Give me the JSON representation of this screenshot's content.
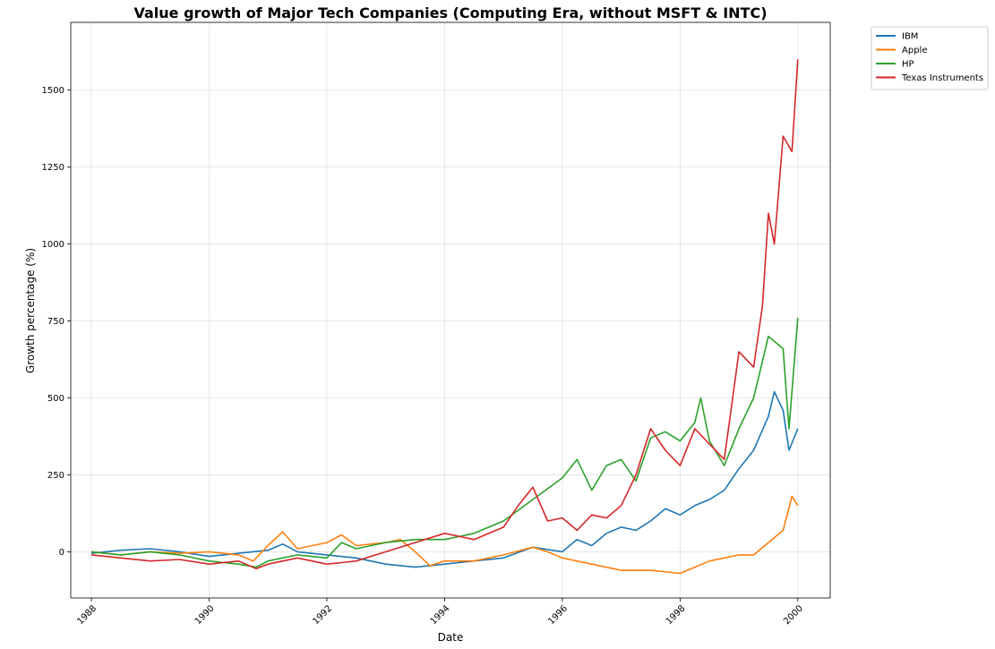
{
  "chart_data": {
    "type": "line",
    "title": "Value growth of Major Tech Companies (Computing Era, without MSFT & INTC)",
    "xlabel": "Date",
    "ylabel": "Growth percentage (%)",
    "xlim": [
      1987.65,
      2000.55
    ],
    "ylim": [
      -150,
      1720
    ],
    "x_ticks": [
      1988,
      1990,
      1992,
      1994,
      1996,
      1998,
      2000
    ],
    "x_tick_labels": [
      "1988",
      "1990",
      "1992",
      "1994",
      "1996",
      "1998",
      "2000"
    ],
    "y_ticks": [
      0,
      250,
      500,
      750,
      1000,
      1250,
      1500
    ],
    "y_tick_labels": [
      "0",
      "250",
      "500",
      "750",
      "1000",
      "1250",
      "1500"
    ],
    "grid": true,
    "legend_position": "outside-top-right",
    "series": [
      {
        "name": "IBM",
        "color": "#1f77b4",
        "x": [
          1988.0,
          1988.5,
          1989.0,
          1989.5,
          1990.0,
          1990.5,
          1991.0,
          1991.25,
          1991.5,
          1992.0,
          1992.5,
          1993.0,
          1993.5,
          1994.0,
          1994.5,
          1995.0,
          1995.5,
          1996.0,
          1996.25,
          1996.5,
          1996.75,
          1997.0,
          1997.25,
          1997.5,
          1997.75,
          1998.0,
          1998.25,
          1998.5,
          1998.75,
          1999.0,
          1999.25,
          1999.5,
          1999.6,
          1999.75,
          1999.85,
          2000.0
        ],
        "y": [
          -5,
          5,
          10,
          0,
          -15,
          -5,
          5,
          25,
          0,
          -10,
          -20,
          -40,
          -50,
          -40,
          -30,
          -20,
          15,
          0,
          40,
          20,
          60,
          80,
          70,
          100,
          140,
          120,
          150,
          170,
          200,
          270,
          330,
          440,
          520,
          460,
          330,
          400
        ]
      },
      {
        "name": "Apple",
        "color": "#ff7f0e",
        "x": [
          1988.0,
          1988.5,
          1989.0,
          1989.5,
          1990.0,
          1990.5,
          1990.75,
          1991.0,
          1991.25,
          1991.5,
          1992.0,
          1992.25,
          1992.5,
          1993.0,
          1993.25,
          1993.5,
          1993.75,
          1994.0,
          1994.5,
          1995.0,
          1995.5,
          1995.75,
          1996.0,
          1996.5,
          1997.0,
          1997.5,
          1998.0,
          1998.25,
          1998.5,
          1998.75,
          1999.0,
          1999.25,
          1999.5,
          1999.75,
          1999.9,
          2000.0
        ],
        "y": [
          0,
          -10,
          0,
          -5,
          0,
          -10,
          -30,
          20,
          65,
          10,
          30,
          55,
          20,
          30,
          40,
          0,
          -45,
          -30,
          -30,
          -10,
          15,
          0,
          -20,
          -40,
          -60,
          -60,
          -70,
          -50,
          -30,
          -20,
          -10,
          -10,
          30,
          70,
          180,
          150
        ]
      },
      {
        "name": "HP",
        "color": "#2ca02c",
        "x": [
          1988.0,
          1988.5,
          1989.0,
          1989.5,
          1990.0,
          1990.5,
          1990.8,
          1991.0,
          1991.5,
          1992.0,
          1992.25,
          1992.5,
          1993.0,
          1993.5,
          1994.0,
          1994.5,
          1995.0,
          1995.5,
          1996.0,
          1996.25,
          1996.5,
          1996.75,
          1997.0,
          1997.25,
          1997.5,
          1997.75,
          1998.0,
          1998.25,
          1998.35,
          1998.5,
          1998.75,
          1999.0,
          1999.25,
          1999.5,
          1999.75,
          1999.85,
          2000.0
        ],
        "y": [
          0,
          -10,
          0,
          -10,
          -30,
          -40,
          -50,
          -30,
          -10,
          -20,
          30,
          10,
          30,
          40,
          40,
          60,
          100,
          170,
          240,
          300,
          200,
          280,
          300,
          230,
          370,
          390,
          360,
          420,
          500,
          360,
          280,
          400,
          500,
          700,
          660,
          400,
          760
        ]
      },
      {
        "name": "Texas Instruments",
        "color": "#d62728",
        "x": [
          1988.0,
          1988.5,
          1989.0,
          1989.5,
          1990.0,
          1990.5,
          1990.8,
          1991.0,
          1991.5,
          1992.0,
          1992.5,
          1993.0,
          1993.5,
          1994.0,
          1994.5,
          1995.0,
          1995.25,
          1995.5,
          1995.75,
          1996.0,
          1996.25,
          1996.5,
          1996.75,
          1997.0,
          1997.25,
          1997.5,
          1997.75,
          1998.0,
          1998.25,
          1998.5,
          1998.75,
          1999.0,
          1999.25,
          1999.4,
          1999.5,
          1999.6,
          1999.75,
          1999.9,
          2000.0
        ],
        "y": [
          -10,
          -20,
          -30,
          -25,
          -40,
          -30,
          -55,
          -40,
          -20,
          -40,
          -30,
          0,
          30,
          60,
          40,
          80,
          150,
          210,
          100,
          110,
          70,
          120,
          110,
          150,
          250,
          400,
          330,
          280,
          400,
          350,
          300,
          650,
          600,
          800,
          1100,
          1000,
          1350,
          1300,
          1600
        ]
      }
    ]
  }
}
